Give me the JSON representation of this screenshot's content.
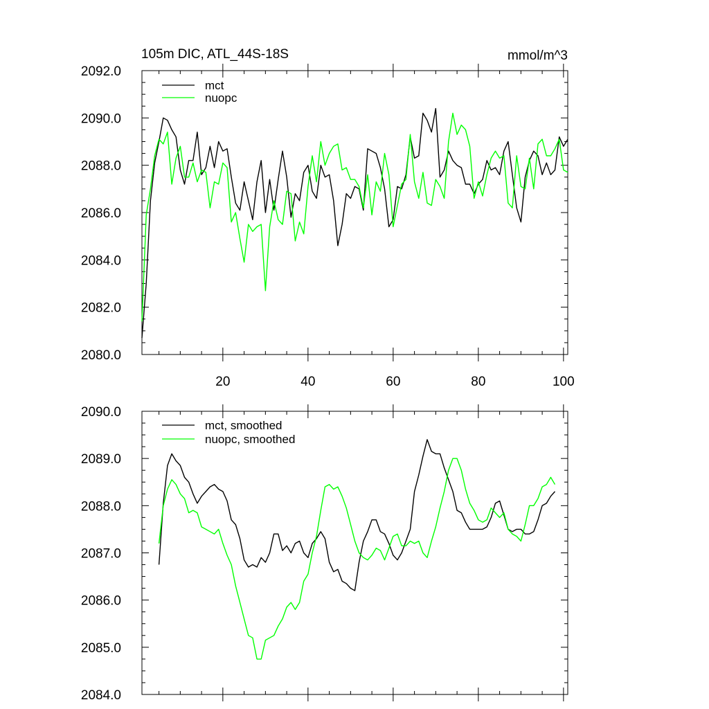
{
  "chart_data": [
    {
      "type": "line",
      "title": "105m DIC, ATL_44S-18S",
      "units": "mmol/m^3",
      "xlabel": "",
      "ylabel": "",
      "xlim": [
        1,
        101
      ],
      "ylim": [
        2080,
        2092
      ],
      "xticks": [
        "20",
        "40",
        "60",
        "80",
        "100"
      ],
      "yticks": [
        "2080.0",
        "2082.0",
        "2084.0",
        "2086.0",
        "2088.0",
        "2090.0",
        "2092.0"
      ],
      "legend_position": "top-left",
      "grid": false,
      "x_start": 1,
      "series": [
        {
          "name": "mct",
          "color": "#000000",
          "values": [
            2080.7,
            2083.0,
            2086.5,
            2088.1,
            2089.0,
            2090.0,
            2089.9,
            2089.5,
            2089.2,
            2087.8,
            2087.2,
            2088.2,
            2088.2,
            2089.4,
            2087.6,
            2087.9,
            2088.8,
            2087.9,
            2089.0,
            2088.6,
            2088.7,
            2087.5,
            2086.4,
            2086.1,
            2087.3,
            2086.5,
            2085.7,
            2087.3,
            2088.2,
            2086.0,
            2087.4,
            2086.1,
            2087.4,
            2088.6,
            2087.5,
            2085.8,
            2086.8,
            2086.5,
            2087.7,
            2088.0,
            2086.9,
            2086.6,
            2088.0,
            2087.5,
            2087.6,
            2086.5,
            2084.6,
            2085.5,
            2086.8,
            2086.6,
            2087.1,
            2087.0,
            2086.1,
            2088.7,
            2088.6,
            2088.5,
            2087.9,
            2087.0,
            2085.4,
            2085.7,
            2087.1,
            2087.0,
            2087.6,
            2089.2,
            2088.3,
            2088.4,
            2090.2,
            2089.9,
            2089.4,
            2090.4,
            2087.5,
            2087.8,
            2088.6,
            2088.2,
            2088.0,
            2087.9,
            2087.2,
            2087.2,
            2086.8,
            2087.2,
            2087.4,
            2088.2,
            2087.8,
            2087.9,
            2087.6,
            2088.6,
            2089.0,
            2087.6,
            2086.2,
            2085.6,
            2087.5,
            2088.2,
            2088.6,
            2088.4,
            2087.6,
            2088.1,
            2087.6,
            2087.8,
            2089.2,
            2088.8,
            2089.1
          ]
        },
        {
          "name": "nuopc",
          "color": "#00ff00",
          "values": [
            2081.4,
            2085.9,
            2087.0,
            2088.4,
            2089.1,
            2088.9,
            2089.4,
            2087.2,
            2088.3,
            2088.8,
            2087.5,
            2087.5,
            2088.1,
            2087.3,
            2087.8,
            2087.7,
            2086.2,
            2087.3,
            2087.2,
            2088.1,
            2087.9,
            2085.6,
            2086.0,
            2084.9,
            2083.9,
            2085.5,
            2085.2,
            2085.4,
            2085.5,
            2082.7,
            2085.4,
            2086.5,
            2085.7,
            2085.5,
            2086.9,
            2086.8,
            2084.8,
            2085.6,
            2085.1,
            2087.1,
            2088.4,
            2087.3,
            2089.0,
            2088.0,
            2088.5,
            2088.8,
            2088.9,
            2087.8,
            2087.9,
            2087.4,
            2087.4,
            2087.1,
            2086.2,
            2087.6,
            2085.9,
            2087.3,
            2086.9,
            2088.5,
            2087.6,
            2085.4,
            2086.3,
            2087.2,
            2087.4,
            2089.3,
            2087.3,
            2086.6,
            2087.7,
            2086.4,
            2086.3,
            2087.4,
            2087.1,
            2086.6,
            2089.0,
            2090.2,
            2089.3,
            2089.7,
            2089.5,
            2088.8,
            2086.6,
            2087.3,
            2086.7,
            2087.6,
            2088.3,
            2088.6,
            2088.3,
            2088.4,
            2086.4,
            2086.2,
            2088.4,
            2087.1,
            2087.0,
            2088.3,
            2087.0,
            2088.9,
            2089.1,
            2088.4,
            2088.4,
            2088.7,
            2089.1,
            2087.8,
            2087.7
          ]
        }
      ]
    },
    {
      "type": "line",
      "title": "",
      "xlabel": "",
      "ylabel": "",
      "xlim": [
        1,
        101
      ],
      "ylim": [
        2084,
        2090
      ],
      "xticks": [
        "",
        "",
        "",
        "",
        ""
      ],
      "yticks": [
        "2084.0",
        "2085.0",
        "2086.0",
        "2087.0",
        "2088.0",
        "2089.0",
        "2090.0"
      ],
      "legend_position": "top-left",
      "grid": false,
      "x_start": 5,
      "series": [
        {
          "name": "mct, smoothed",
          "color": "#000000",
          "values": [
            2086.75,
            2088.05,
            2088.85,
            2089.1,
            2088.95,
            2088.85,
            2088.6,
            2088.5,
            2088.25,
            2088.05,
            2088.2,
            2088.3,
            2088.4,
            2088.45,
            2088.35,
            2088.3,
            2088.1,
            2087.7,
            2087.6,
            2087.3,
            2086.85,
            2086.7,
            2086.75,
            2086.7,
            2086.9,
            2086.8,
            2087.0,
            2087.4,
            2087.4,
            2087.05,
            2087.15,
            2087.0,
            2087.2,
            2087.25,
            2087.0,
            2086.9,
            2087.2,
            2087.3,
            2087.45,
            2087.3,
            2086.8,
            2086.6,
            2086.65,
            2086.4,
            2086.35,
            2086.25,
            2086.2,
            2086.8,
            2087.25,
            2087.45,
            2087.7,
            2087.7,
            2087.45,
            2087.4,
            2087.2,
            2086.95,
            2086.85,
            2087.0,
            2087.25,
            2087.5,
            2088.3,
            2088.65,
            2089.05,
            2089.4,
            2089.15,
            2089.1,
            2089.1,
            2088.8,
            2088.55,
            2088.3,
            2087.9,
            2087.85,
            2087.65,
            2087.5,
            2087.5,
            2087.5,
            2087.5,
            2087.55,
            2087.75,
            2088.05,
            2088.1,
            2087.8,
            2087.5,
            2087.45,
            2087.5,
            2087.5,
            2087.4,
            2087.4,
            2087.45,
            2087.7,
            2088.0,
            2088.05,
            2088.2,
            2088.3
          ]
        },
        {
          "name": "nuopc, smoothed",
          "color": "#00ff00",
          "values": [
            2087.2,
            2088.0,
            2088.35,
            2088.55,
            2088.45,
            2088.25,
            2088.15,
            2087.85,
            2087.9,
            2087.85,
            2087.55,
            2087.5,
            2087.45,
            2087.4,
            2087.5,
            2087.2,
            2086.95,
            2086.75,
            2086.3,
            2085.95,
            2085.6,
            2085.25,
            2085.2,
            2084.75,
            2084.75,
            2085.15,
            2085.2,
            2085.25,
            2085.45,
            2085.6,
            2085.85,
            2085.95,
            2085.8,
            2085.95,
            2086.4,
            2086.55,
            2087.0,
            2087.35,
            2087.9,
            2088.4,
            2088.45,
            2088.35,
            2088.4,
            2088.2,
            2087.95,
            2087.6,
            2087.25,
            2087.0,
            2086.9,
            2086.85,
            2086.95,
            2087.1,
            2087.05,
            2086.85,
            2087.1,
            2087.35,
            2087.4,
            2087.15,
            2087.15,
            2087.25,
            2087.2,
            2087.25,
            2087.0,
            2086.9,
            2087.25,
            2087.55,
            2087.95,
            2088.3,
            2088.75,
            2089.0,
            2089.0,
            2088.75,
            2088.35,
            2088.05,
            2087.9,
            2087.7,
            2087.65,
            2087.7,
            2087.95,
            2087.85,
            2087.75,
            2087.85,
            2087.5,
            2087.4,
            2087.35,
            2087.25,
            2087.6,
            2088.0,
            2088.0,
            2088.15,
            2088.4,
            2088.45,
            2088.6,
            2088.45
          ]
        }
      ]
    }
  ]
}
